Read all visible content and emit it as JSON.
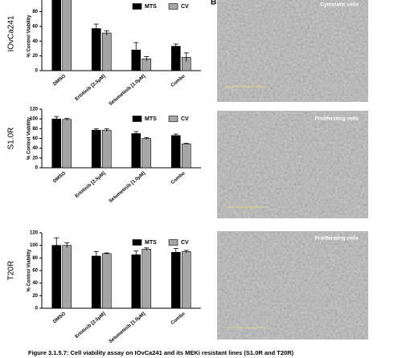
{
  "panel_label": "B",
  "images": [
    {
      "label": "Cytostatic cells"
    },
    {
      "label": "Proliferating cells"
    },
    {
      "label": "Proliferating cells"
    }
  ],
  "caption": "Figure 3.1.5.7: Cell viability assay on IOvCa241 and its MEKi resistant lines (S1.0R and T20R)",
  "chart_data": [
    {
      "type": "bar",
      "row_label": "IOvCa241",
      "y_label": "% Control Viability",
      "categories": [
        "DMSO",
        "Erlotinib [2.5μM]",
        "Selumetinib [1.0μM]",
        "Combo"
      ],
      "series": [
        {
          "name": "MTS",
          "color": "#000000",
          "values": [
            100,
            57,
            28,
            33
          ],
          "errors": [
            1,
            6,
            10,
            3
          ]
        },
        {
          "name": "CV",
          "color": "#a6a6a6",
          "values": [
            100,
            51,
            16,
            18
          ],
          "errors": [
            1,
            3,
            3,
            6
          ]
        }
      ],
      "ylim": [
        0,
        100
      ],
      "yticks": [
        0,
        20,
        40,
        60,
        80
      ],
      "legend": "top-right"
    },
    {
      "type": "bar",
      "row_label": "S1.0R",
      "y_label": "% Control Viability",
      "categories": [
        "DMSO",
        "Erlotinib [2.5μM]",
        "Selumetinib [1.0μM]",
        "Combo"
      ],
      "series": [
        {
          "name": "MTS",
          "color": "#000000",
          "values": [
            100,
            77,
            70,
            66
          ],
          "errors": [
            5,
            3,
            4,
            3
          ]
        },
        {
          "name": "CV",
          "color": "#a6a6a6",
          "values": [
            99,
            77,
            60,
            49
          ],
          "errors": [
            2,
            3,
            2,
            1
          ]
        }
      ],
      "ylim": [
        0,
        120
      ],
      "yticks": [
        0,
        20,
        40,
        60,
        80,
        100,
        120
      ],
      "legend": "top-right"
    },
    {
      "type": "bar",
      "row_label": "T20R",
      "y_label": "% Control Viability",
      "categories": [
        "DMSO",
        "Erlotinib [2.5μM]",
        "Selumetinib [1.0μM]",
        "Combo"
      ],
      "series": [
        {
          "name": "MTS",
          "color": "#000000",
          "values": [
            100,
            83,
            85,
            89
          ],
          "errors": [
            12,
            7,
            6,
            6
          ]
        },
        {
          "name": "CV",
          "color": "#a6a6a6",
          "values": [
            100,
            87,
            94,
            90
          ],
          "errors": [
            4,
            1,
            2,
            2
          ]
        }
      ],
      "ylim": [
        0,
        120
      ],
      "yticks": [
        0,
        20,
        40,
        60,
        80,
        100,
        120
      ],
      "legend": "top-right"
    }
  ]
}
